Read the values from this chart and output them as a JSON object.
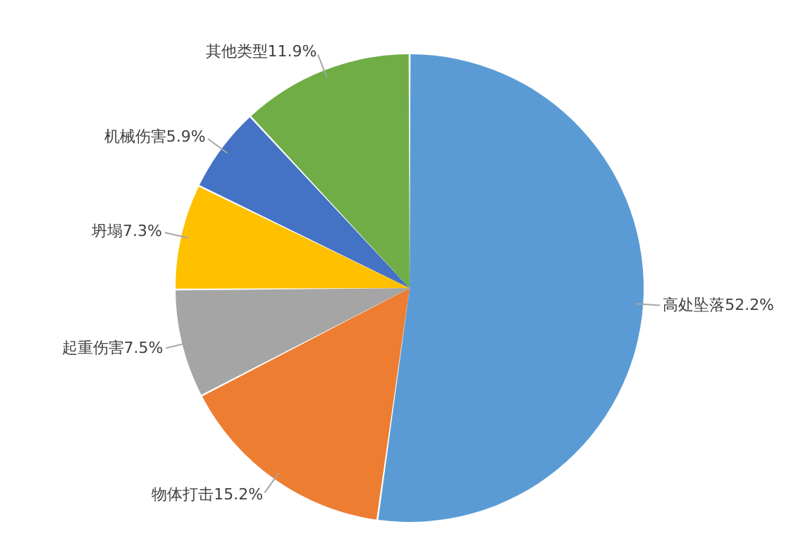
{
  "chart_data": {
    "type": "pie",
    "categories": [
      "高处坠落",
      "物体打击",
      "起重伤害",
      "坍塌",
      "机械伤害",
      "其他类型"
    ],
    "values": [
      52.2,
      15.2,
      7.5,
      7.3,
      5.9,
      11.9
    ],
    "value_labels": [
      "52.2%",
      "15.2%",
      "7.5%",
      "7.3%",
      "5.9%",
      "11.9%"
    ],
    "colors": [
      "#5b9bd5",
      "#ed7d31",
      "#a5a5a5",
      "#ffc000",
      "#4472c4",
      "#70ad47"
    ]
  }
}
